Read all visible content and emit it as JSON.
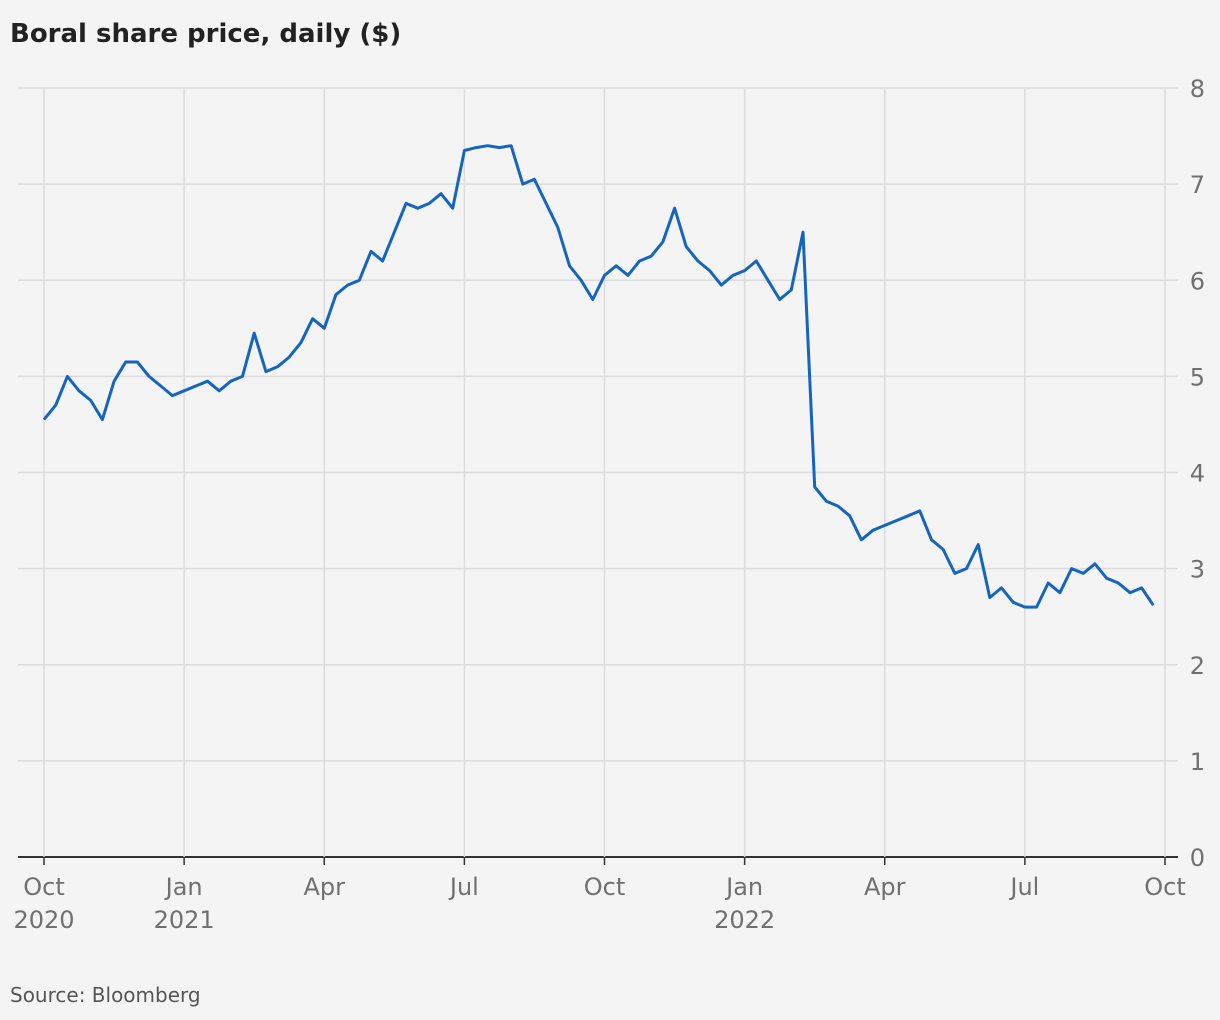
{
  "chart_data": {
    "type": "line",
    "title": "Boral share price, daily ($)",
    "source": "Source: Bloomberg",
    "x": [
      "2020-10",
      "2020-10",
      "2020-10",
      "2020-10",
      "2020-11",
      "2020-11",
      "2020-11",
      "2020-11",
      "2020-12",
      "2020-12",
      "2020-12",
      "2020-12",
      "2021-01",
      "2021-01",
      "2021-01",
      "2021-01",
      "2021-02",
      "2021-02",
      "2021-02",
      "2021-02",
      "2021-03",
      "2021-03",
      "2021-03",
      "2021-03",
      "2021-04",
      "2021-04",
      "2021-04",
      "2021-04",
      "2021-05",
      "2021-05",
      "2021-05",
      "2021-05",
      "2021-06",
      "2021-06",
      "2021-06",
      "2021-06",
      "2021-07",
      "2021-07",
      "2021-07",
      "2021-07",
      "2021-08",
      "2021-08",
      "2021-08",
      "2021-08",
      "2021-09",
      "2021-09",
      "2021-09",
      "2021-09",
      "2021-10",
      "2021-10",
      "2021-10",
      "2021-10",
      "2021-11",
      "2021-11",
      "2021-11",
      "2021-11",
      "2021-12",
      "2021-12",
      "2021-12",
      "2021-12",
      "2022-01",
      "2022-01",
      "2022-01",
      "2022-01",
      "2022-02",
      "2022-02",
      "2022-02",
      "2022-02",
      "2022-03",
      "2022-03",
      "2022-03",
      "2022-03",
      "2022-04",
      "2022-04",
      "2022-04",
      "2022-04",
      "2022-05",
      "2022-05",
      "2022-05",
      "2022-05",
      "2022-06",
      "2022-06",
      "2022-06",
      "2022-06",
      "2022-07",
      "2022-07",
      "2022-07",
      "2022-07",
      "2022-08",
      "2022-08",
      "2022-08",
      "2022-08",
      "2022-09",
      "2022-09",
      "2022-09",
      "2022-09"
    ],
    "series": [
      {
        "name": "Boral",
        "color": "#1565c0",
        "values": [
          4.55,
          4.7,
          5.0,
          4.85,
          4.75,
          4.55,
          4.95,
          5.15,
          5.15,
          5.0,
          4.9,
          4.8,
          4.85,
          4.9,
          4.95,
          4.85,
          4.95,
          5.0,
          5.45,
          5.05,
          5.1,
          5.2,
          5.35,
          5.6,
          5.5,
          5.85,
          5.95,
          6.0,
          6.3,
          6.2,
          6.5,
          6.8,
          6.75,
          6.8,
          6.9,
          6.75,
          7.35,
          7.38,
          7.4,
          7.38,
          7.4,
          7.0,
          7.05,
          6.8,
          6.55,
          6.15,
          6.0,
          5.8,
          6.05,
          6.15,
          6.05,
          6.2,
          6.25,
          6.4,
          6.75,
          6.35,
          6.2,
          6.1,
          5.95,
          6.05,
          6.1,
          6.2,
          6.0,
          5.8,
          5.9,
          6.5,
          3.85,
          3.7,
          3.65,
          3.55,
          3.3,
          3.4,
          3.45,
          3.5,
          3.55,
          3.6,
          3.3,
          3.2,
          2.95,
          3.0,
          3.25,
          2.7,
          2.8,
          2.65,
          2.6,
          2.6,
          2.85,
          2.75,
          3.0,
          2.95,
          3.05,
          2.9,
          2.85,
          2.75,
          2.8,
          2.62
        ]
      }
    ],
    "xticks": [
      {
        "value": "2020-10",
        "label": "Oct\n2020"
      },
      {
        "value": "2021-01",
        "label": "Jan\n2021"
      },
      {
        "value": "2021-04",
        "label": "Apr"
      },
      {
        "value": "2021-07",
        "label": "Jul"
      },
      {
        "value": "2021-10",
        "label": "Oct"
      },
      {
        "value": "2022-01",
        "label": "Jan\n2022"
      },
      {
        "value": "2022-04",
        "label": "Apr"
      },
      {
        "value": "2022-07",
        "label": "Jul"
      },
      {
        "value": "2022-10",
        "label": "Oct"
      }
    ],
    "ylim": [
      0,
      8
    ],
    "yticks": [
      0,
      1,
      2,
      3,
      4,
      5,
      6,
      7,
      8
    ],
    "grid": true
  }
}
